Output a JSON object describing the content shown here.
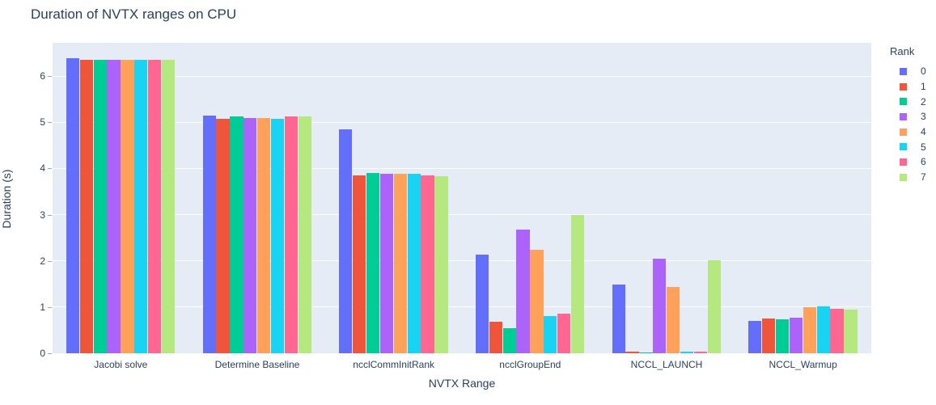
{
  "title": "Duration of NVTX ranges on CPU",
  "chart_data": {
    "type": "bar",
    "title": "Duration of NVTX ranges on CPU",
    "xlabel": "NVTX Range",
    "ylabel": "Duration (s)",
    "ylim": [
      0,
      6.72
    ],
    "yticks": [
      0,
      1,
      2,
      3,
      4,
      5,
      6
    ],
    "grid": true,
    "plot_bg": "#e5ecf6",
    "grid_color": "#ffffff",
    "text_color": "#2a3f5f",
    "legend_title": "Rank",
    "legend_position": "right",
    "categories": [
      "Jacobi solve",
      "Determine Baseline",
      "ncclCommInitRank",
      "ncclGroupEnd",
      "NCCL_LAUNCH",
      "NCCL_Warmup"
    ],
    "series": [
      {
        "name": "0",
        "color": "#636EFA",
        "values": [
          6.38,
          5.15,
          4.85,
          2.13,
          1.49,
          0.7
        ]
      },
      {
        "name": "1",
        "color": "#EF553B",
        "values": [
          6.36,
          5.07,
          3.85,
          0.68,
          0.03,
          0.76
        ]
      },
      {
        "name": "2",
        "color": "#00CC96",
        "values": [
          6.36,
          5.12,
          3.91,
          0.55,
          0.02,
          0.74
        ]
      },
      {
        "name": "3",
        "color": "#AB63FA",
        "values": [
          6.36,
          5.1,
          3.88,
          2.68,
          2.05,
          0.77
        ]
      },
      {
        "name": "4",
        "color": "#FFA15A",
        "values": [
          6.36,
          5.1,
          3.88,
          2.24,
          1.44,
          1.0
        ]
      },
      {
        "name": "5",
        "color": "#19D3F3",
        "values": [
          6.36,
          5.07,
          3.88,
          0.8,
          0.03,
          1.02
        ]
      },
      {
        "name": "6",
        "color": "#FF6692",
        "values": [
          6.36,
          5.12,
          3.85,
          0.85,
          0.03,
          0.97
        ]
      },
      {
        "name": "7",
        "color": "#B6E880",
        "values": [
          6.36,
          5.13,
          3.83,
          2.99,
          2.02,
          0.95
        ]
      }
    ]
  }
}
